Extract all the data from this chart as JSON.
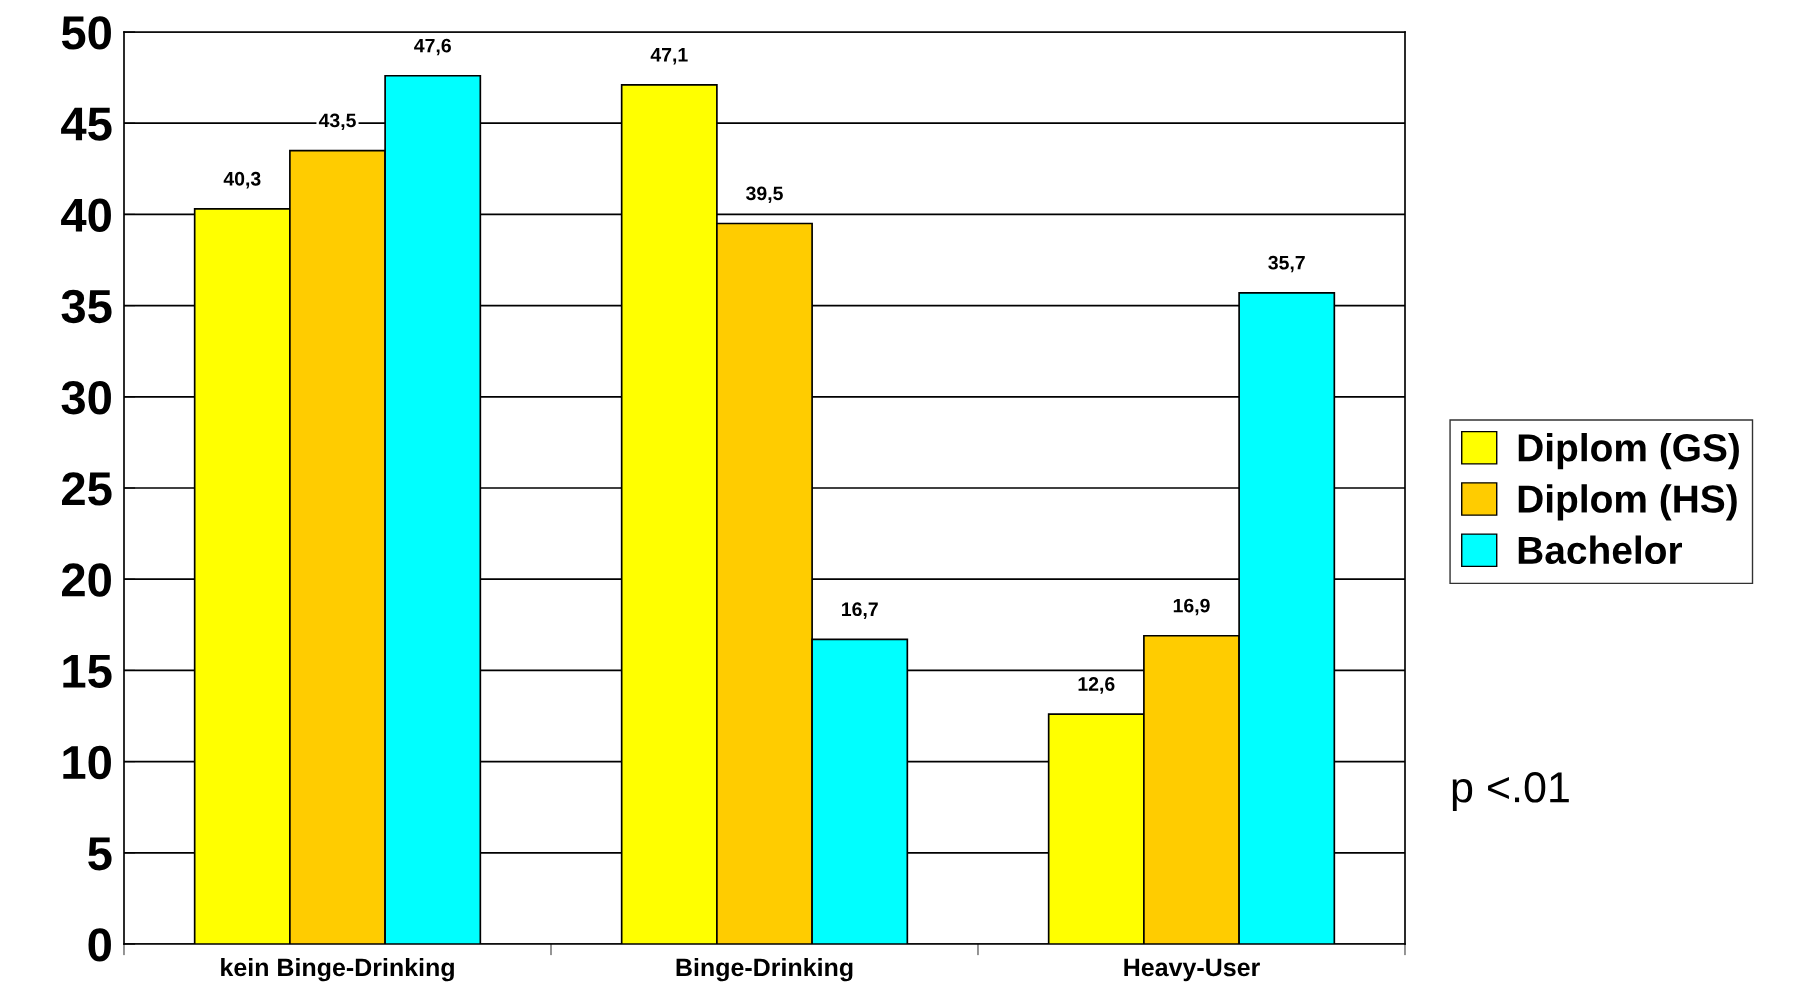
{
  "chart_data": {
    "type": "bar",
    "categories": [
      "kein Binge-Drinking",
      "Binge-Drinking",
      "Heavy-User"
    ],
    "series": [
      {
        "name": "Diplom (GS)",
        "color": "#ffff00",
        "values": [
          40.3,
          47.1,
          12.6
        ],
        "value_labels": [
          "40,3",
          "47,1",
          "12,6"
        ]
      },
      {
        "name": "Diplom (HS)",
        "color": "#ffcc00",
        "values": [
          43.5,
          39.5,
          16.9
        ],
        "value_labels": [
          "43,5",
          "39,5",
          "16,9"
        ]
      },
      {
        "name": "Bachelor",
        "color": "#00ffff",
        "values": [
          47.6,
          16.7,
          35.7
        ],
        "value_labels": [
          "47,6",
          "16,7",
          "35,7"
        ]
      }
    ],
    "ylim": [
      0,
      50
    ],
    "yticks": [
      0,
      5,
      10,
      15,
      20,
      25,
      30,
      35,
      40,
      45,
      50
    ],
    "grid": "y",
    "legend": "right",
    "annotations": [
      "p <.01"
    ]
  }
}
